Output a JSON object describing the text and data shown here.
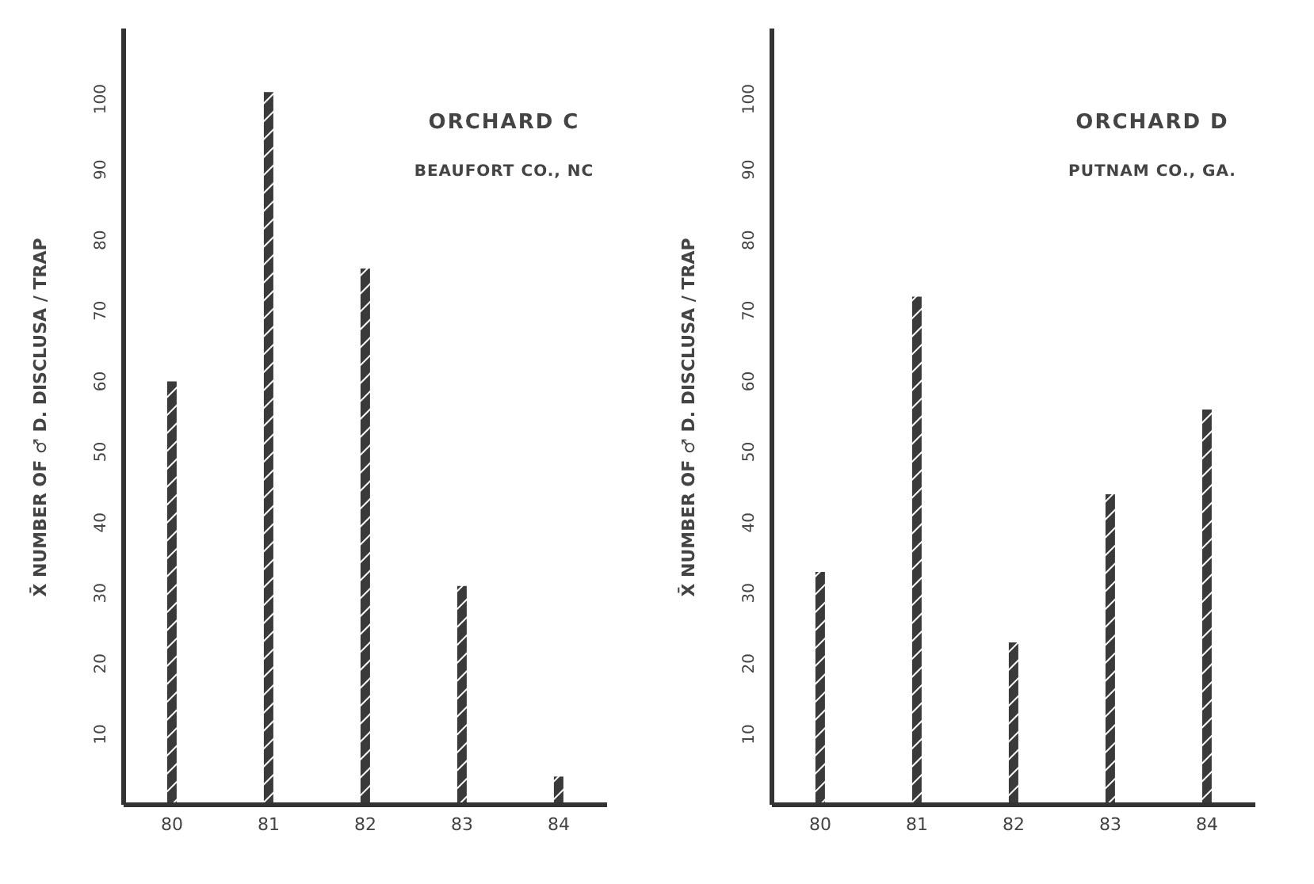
{
  "chart_data": [
    {
      "type": "bar",
      "title": "ORCHARD C",
      "subtitle": "BEAUFORT CO., NC",
      "ylabel": "X̄ NUMBER OF ♂ D. DISCLUSA / TRAP",
      "categories": [
        "80",
        "81",
        "82",
        "83",
        "84"
      ],
      "values": [
        60,
        101,
        76,
        31,
        4
      ],
      "color": "#3a3a3a",
      "ylim": [
        0,
        110
      ],
      "yticks": [
        10,
        20,
        30,
        40,
        50,
        60,
        70,
        80,
        90,
        100
      ],
      "grid": false,
      "legend": false
    },
    {
      "type": "bar",
      "title": "ORCHARD D",
      "subtitle": "PUTNAM CO., GA.",
      "ylabel": "X̄ NUMBER OF ♂ D. DISCLUSA / TRAP",
      "categories": [
        "80",
        "81",
        "82",
        "83",
        "84"
      ],
      "values": [
        33,
        72,
        23,
        44,
        56
      ],
      "color": "#3a3a3a",
      "ylim": [
        0,
        110
      ],
      "yticks": [
        10,
        20,
        30,
        40,
        50,
        60,
        70,
        80,
        90,
        100
      ],
      "grid": false,
      "legend": false
    }
  ]
}
